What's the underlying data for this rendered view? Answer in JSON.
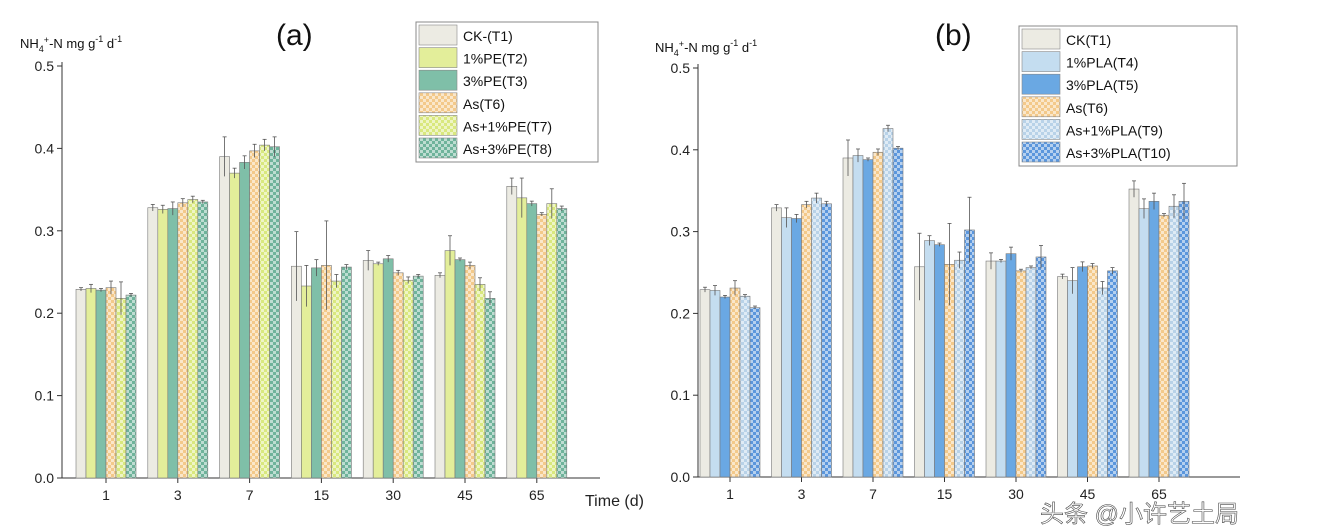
{
  "chart_data": [
    {
      "type": "bar",
      "title": "(a)",
      "ylabel": "NH4+-N mg g-1 d-1",
      "xlabel": "Time (d)",
      "ylim": [
        0,
        0.5
      ],
      "yticks": [
        "0.0",
        "0.1",
        "0.2",
        "0.3",
        "0.4",
        "0.5"
      ],
      "categories": [
        "1",
        "3",
        "7",
        "15",
        "30",
        "45",
        "65"
      ],
      "legend_position": "top-right",
      "series": [
        {
          "name": "CK-(T1)",
          "color": "#ecebe3",
          "pattern": "none",
          "values": [
            0.229,
            0.328,
            0.39,
            0.257,
            0.264,
            0.246,
            0.354
          ],
          "errors": [
            0.002,
            0.004,
            0.024,
            0.042,
            0.012,
            0.003,
            0.01
          ]
        },
        {
          "name": "1%PE(T2)",
          "color": "#e3ee9a",
          "pattern": "none",
          "values": [
            0.23,
            0.326,
            0.37,
            0.233,
            0.26,
            0.276,
            0.34
          ],
          "errors": [
            0.005,
            0.005,
            0.006,
            0.025,
            0.002,
            0.018,
            0.024
          ]
        },
        {
          "name": "3%PE(T3)",
          "color": "#7fbfa8",
          "pattern": "none",
          "values": [
            0.228,
            0.327,
            0.383,
            0.255,
            0.266,
            0.265,
            0.333
          ],
          "errors": [
            0.002,
            0.008,
            0.008,
            0.01,
            0.004,
            0.002,
            0.003
          ]
        },
        {
          "name": "As(T6)",
          "color": "#f3c98a",
          "pattern": "check",
          "values": [
            0.231,
            0.334,
            0.397,
            0.258,
            0.249,
            0.258,
            0.32
          ],
          "errors": [
            0.008,
            0.005,
            0.008,
            0.054,
            0.003,
            0.004,
            0.002
          ]
        },
        {
          "name": "As+1%PE(T7)",
          "color": "#d9e87e",
          "pattern": "check",
          "values": [
            0.218,
            0.338,
            0.404,
            0.239,
            0.24,
            0.235,
            0.333
          ],
          "errors": [
            0.02,
            0.004,
            0.007,
            0.008,
            0.004,
            0.008,
            0.018
          ]
        },
        {
          "name": "As+3%PE(T8)",
          "color": "#6fb39b",
          "pattern": "check",
          "values": [
            0.222,
            0.335,
            0.402,
            0.256,
            0.245,
            0.218,
            0.327
          ],
          "errors": [
            0.002,
            0.002,
            0.012,
            0.003,
            0.002,
            0.008,
            0.003
          ]
        }
      ]
    },
    {
      "type": "bar",
      "title": "(b)",
      "ylabel": "NH4+-N mg g-1 d-1",
      "xlabel": "",
      "ylim": [
        0,
        0.5
      ],
      "yticks": [
        "0.0",
        "0.1",
        "0.2",
        "0.3",
        "0.4",
        "0.5"
      ],
      "categories": [
        "1",
        "3",
        "7",
        "15",
        "30",
        "45",
        "65"
      ],
      "legend_position": "top-right",
      "series": [
        {
          "name": "CK(T1)",
          "color": "#ecebe3",
          "pattern": "none",
          "values": [
            0.229,
            0.329,
            0.39,
            0.257,
            0.264,
            0.245,
            0.352
          ],
          "errors": [
            0.003,
            0.004,
            0.022,
            0.041,
            0.01,
            0.003,
            0.01
          ]
        },
        {
          "name": "1%PLA(T4)",
          "color": "#c4ddf0",
          "pattern": "none",
          "values": [
            0.228,
            0.317,
            0.393,
            0.289,
            0.264,
            0.24,
            0.328
          ],
          "errors": [
            0.006,
            0.012,
            0.008,
            0.006,
            0.002,
            0.016,
            0.012
          ]
        },
        {
          "name": "3%PLA(T5)",
          "color": "#6aa8e3",
          "pattern": "none",
          "values": [
            0.22,
            0.316,
            0.388,
            0.284,
            0.273,
            0.257,
            0.337
          ],
          "errors": [
            0.002,
            0.005,
            0.002,
            0.002,
            0.008,
            0.006,
            0.01
          ]
        },
        {
          "name": "As(T6)",
          "color": "#f3c98a",
          "pattern": "check",
          "values": [
            0.231,
            0.333,
            0.397,
            0.26,
            0.252,
            0.258,
            0.32
          ],
          "errors": [
            0.009,
            0.004,
            0.004,
            0.05,
            0.002,
            0.003,
            0.002
          ]
        },
        {
          "name": "As+1%PLA(T9)",
          "color": "#b8d2e8",
          "pattern": "check",
          "values": [
            0.221,
            0.341,
            0.426,
            0.265,
            0.256,
            0.231,
            0.331
          ],
          "errors": [
            0.002,
            0.006,
            0.004,
            0.01,
            0.002,
            0.008,
            0.014
          ]
        },
        {
          "name": "As+3%PLA(T10)",
          "color": "#5b96dc",
          "pattern": "check",
          "values": [
            0.207,
            0.334,
            0.402,
            0.302,
            0.269,
            0.252,
            0.337
          ],
          "errors": [
            0.002,
            0.003,
            0.002,
            0.04,
            0.014,
            0.004,
            0.022
          ]
        }
      ]
    }
  ],
  "watermark": "头条 @小许艺土局"
}
